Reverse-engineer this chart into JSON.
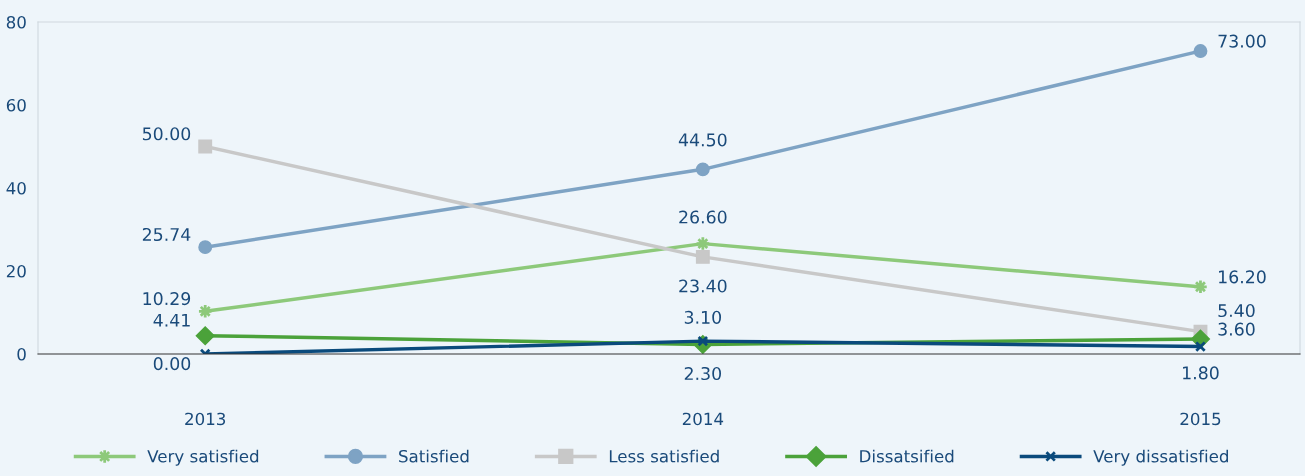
{
  "chart_data": {
    "type": "line",
    "categories": [
      "2013",
      "2014",
      "2015"
    ],
    "series": [
      {
        "name": "Very satisfied",
        "color": "#8dc97a",
        "marker": "star",
        "values": [
          10.29,
          26.6,
          16.2
        ],
        "value_labels": [
          "10.29",
          "26.60",
          "16.20"
        ]
      },
      {
        "name": "Satisfied",
        "color": "#7ea3c4",
        "marker": "circle",
        "values": [
          25.74,
          44.5,
          73.0
        ],
        "value_labels": [
          "25.74",
          "44.50",
          "73.00"
        ]
      },
      {
        "name": "Less satisfied",
        "color": "#c8c8c8",
        "marker": "square",
        "values": [
          50.0,
          23.4,
          5.4
        ],
        "value_labels": [
          "50.00",
          "23.40",
          "5.40"
        ]
      },
      {
        "name": "Dissatsified",
        "color": "#4ba23a",
        "marker": "diamond",
        "values": [
          4.41,
          2.3,
          3.6
        ],
        "value_labels": [
          "4.41",
          "2.30",
          "3.60"
        ]
      },
      {
        "name": "Very dissatisfied",
        "color": "#0a4a7c",
        "marker": "cross",
        "values": [
          0.0,
          3.1,
          1.8
        ],
        "value_labels": [
          "0.00",
          "3.10",
          "1.80"
        ]
      }
    ],
    "ylim": [
      0,
      80
    ],
    "yticks": [
      0,
      20,
      40,
      60,
      80
    ],
    "grid": false,
    "legend": "bottom",
    "line_style": "solid"
  }
}
